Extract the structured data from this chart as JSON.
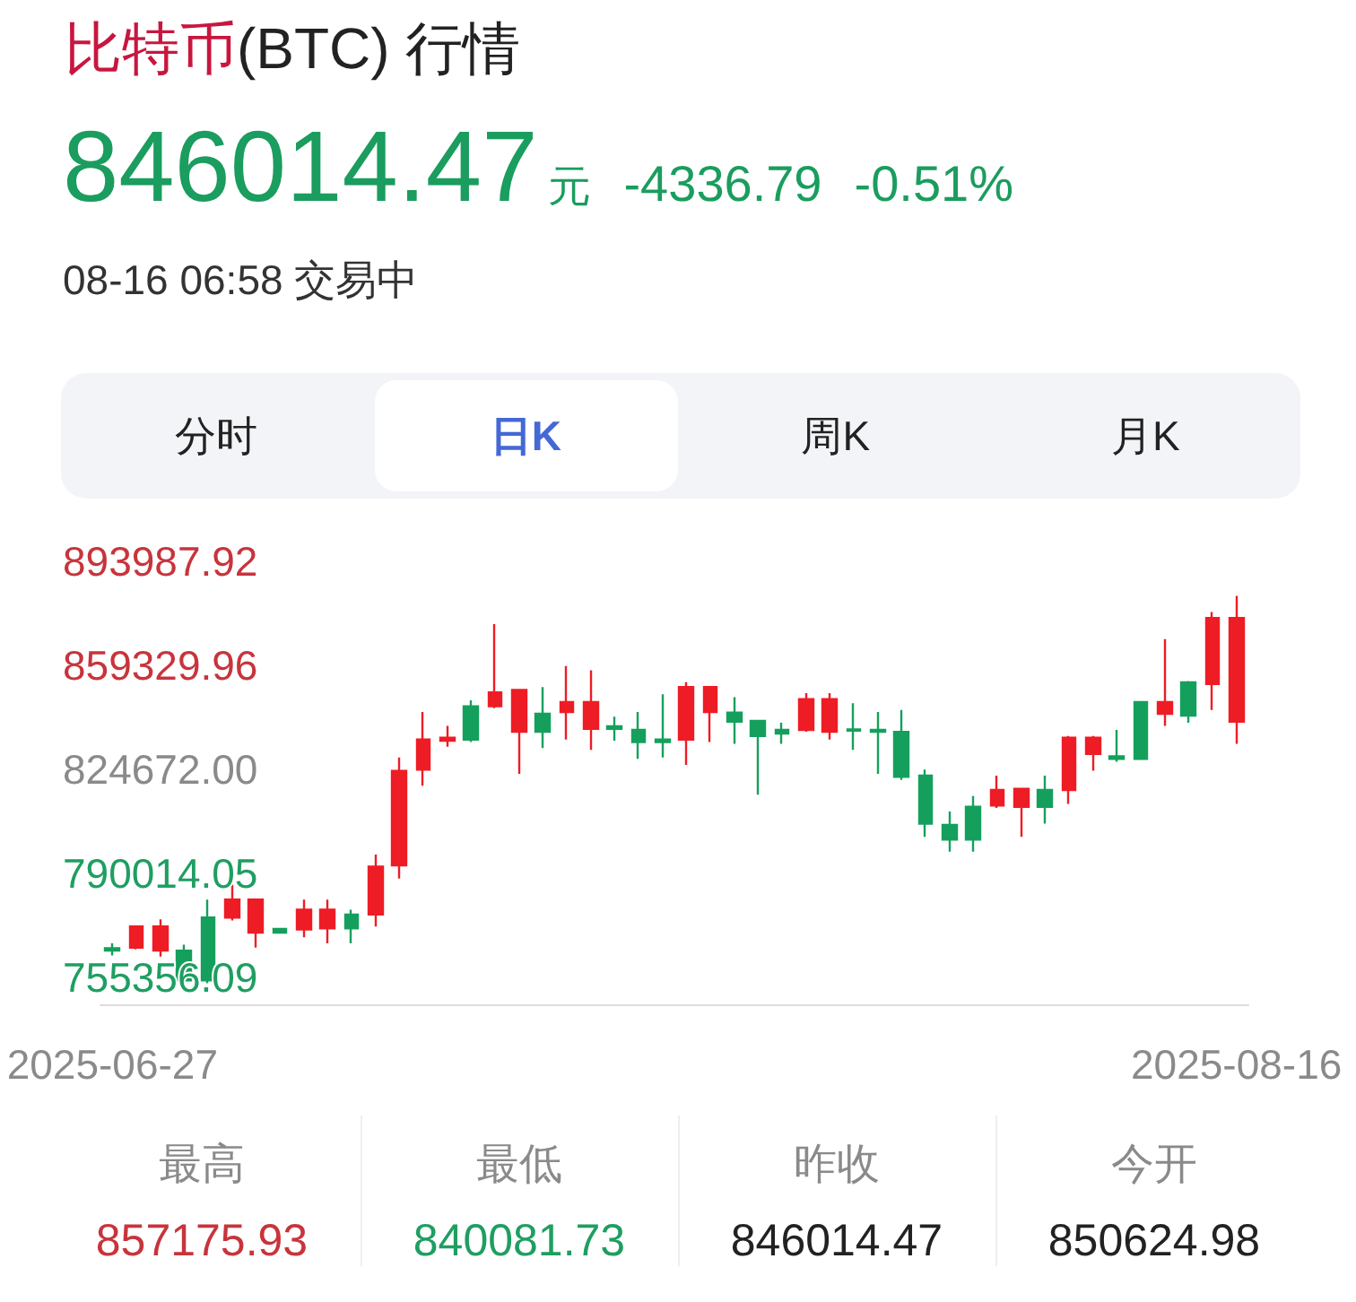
{
  "chart_data": {
    "type": "candlestick",
    "title": "比特币(BTC) 行情",
    "subtitle": "08-16 06:58 交易中",
    "annotations": [
      "846014.47",
      "元",
      "-4336.79",
      "-0.51%",
      "分时",
      "日K",
      "周K",
      "月K",
      "最高",
      "857175.93",
      "最低",
      "840081.73",
      "昨收",
      "846014.47",
      "今开",
      "850624.98"
    ],
    "categories": [
      "2025-06-27",
      null,
      null,
      null,
      null,
      null,
      null,
      null,
      null,
      null,
      null,
      null,
      null,
      null,
      null,
      null,
      null,
      null,
      null,
      null,
      null,
      null,
      null,
      null,
      null,
      null,
      null,
      null,
      null,
      null,
      null,
      null,
      null,
      null,
      null,
      null,
      null,
      null,
      null,
      null,
      null,
      null,
      null,
      null,
      null,
      null,
      null,
      "2025-08-16"
    ],
    "ohlc": [
      [
        765100,
        766700,
        762700,
        764300
      ],
      [
        765300,
        772700,
        764700,
        772300
      ],
      [
        764300,
        774700,
        762300,
        772300
      ],
      [
        764300,
        766300,
        753400,
        754400
      ],
      [
        775300,
        781300,
        753400,
        754400
      ],
      [
        775300,
        786300,
        774300,
        781300
      ],
      [
        770300,
        781300,
        765300,
        781300
      ],
      [
        771500,
        771900,
        769900,
        770300
      ],
      [
        771300,
        781300,
        768700,
        777900
      ],
      [
        771700,
        781300,
        766700,
        777900
      ],
      [
        776300,
        777900,
        766700,
        771700
      ],
      [
        776300,
        796300,
        772300,
        792300
      ],
      [
        792700,
        828600,
        788300,
        824200
      ],
      [
        824600,
        843800,
        819200,
        834600
      ],
      [
        834200,
        839200,
        832200,
        835200
      ],
      [
        845700,
        847700,
        833800,
        834600
      ],
      [
        845700,
        873100,
        845100,
        850300
      ],
      [
        837200,
        851100,
        823200,
        851100
      ],
      [
        843200,
        852100,
        831800,
        837200
      ],
      [
        843800,
        859100,
        834600,
        847100
      ],
      [
        838200,
        857700,
        831200,
        847100
      ],
      [
        839000,
        842200,
        834200,
        838200
      ],
      [
        837800,
        843800,
        828200,
        833800
      ],
      [
        834600,
        849700,
        828600,
        833800
      ],
      [
        834600,
        853700,
        826200,
        852100
      ],
      [
        843800,
        852100,
        833800,
        852100
      ],
      [
        843600,
        848700,
        833200,
        840600
      ],
      [
        840800,
        840800,
        816200,
        835800
      ],
      [
        837800,
        840200,
        833200,
        836600
      ],
      [
        837800,
        850100,
        837200,
        848100
      ],
      [
        837200,
        850100,
        834600,
        848100
      ],
      [
        838000,
        846700,
        831200,
        837600
      ],
      [
        837800,
        843800,
        823200,
        837200
      ],
      [
        837200,
        844500,
        821200,
        822200
      ],
      [
        822600,
        824600,
        802200,
        806600
      ],
      [
        806200,
        810600,
        797300,
        801300
      ],
      [
        812200,
        815800,
        797300,
        801300
      ],
      [
        812600,
        822600,
        811800,
        817800
      ],
      [
        812200,
        818200,
        802200,
        818200
      ],
      [
        817800,
        822600,
        806600,
        812200
      ],
      [
        817800,
        835800,
        813200,
        835200
      ],
      [
        829800,
        835800,
        824200,
        835200
      ],
      [
        829000,
        837800,
        827200,
        828200
      ],
      [
        847100,
        847100,
        828200,
        828200
      ],
      [
        843200,
        868100,
        839200,
        847100
      ],
      [
        853700,
        854100,
        840200,
        842600
      ],
      [
        853100,
        877100,
        844500,
        875100
      ],
      [
        840600,
        882500,
        833200,
        875100
      ]
    ],
    "colors": [
      "#14a05c",
      "#ee1c25",
      "#ee1c25",
      "#14a05c",
      "#14a05c",
      "#ee1c25",
      "#ee1c25",
      "#14a05c",
      "#ee1c25",
      "#ee1c25",
      "#14a05c",
      "#ee1c25",
      "#ee1c25",
      "#ee1c25",
      "#ee1c25",
      "#14a05c",
      "#ee1c25",
      "#ee1c25",
      "#14a05c",
      "#ee1c25",
      "#ee1c25",
      "#14a05c",
      "#14a05c",
      "#14a05c",
      "#ee1c25",
      "#ee1c25",
      "#14a05c",
      "#14a05c",
      "#14a05c",
      "#ee1c25",
      "#ee1c25",
      "#14a05c",
      "#14a05c",
      "#14a05c",
      "#14a05c",
      "#14a05c",
      "#14a05c",
      "#ee1c25",
      "#ee1c25",
      "#14a05c",
      "#ee1c25",
      "#ee1c25",
      "#14a05c",
      "#14a05c",
      "#ee1c25",
      "#14a05c",
      "#ee1c25",
      "#ee1c25"
    ],
    "ylim": [
      746400,
      893987.92
    ],
    "yticks": [
      755356.09,
      790014.05,
      {
        "value": 824672,
        "label": "824672.00"
      },
      859329.96,
      893987.92
    ]
  }
}
